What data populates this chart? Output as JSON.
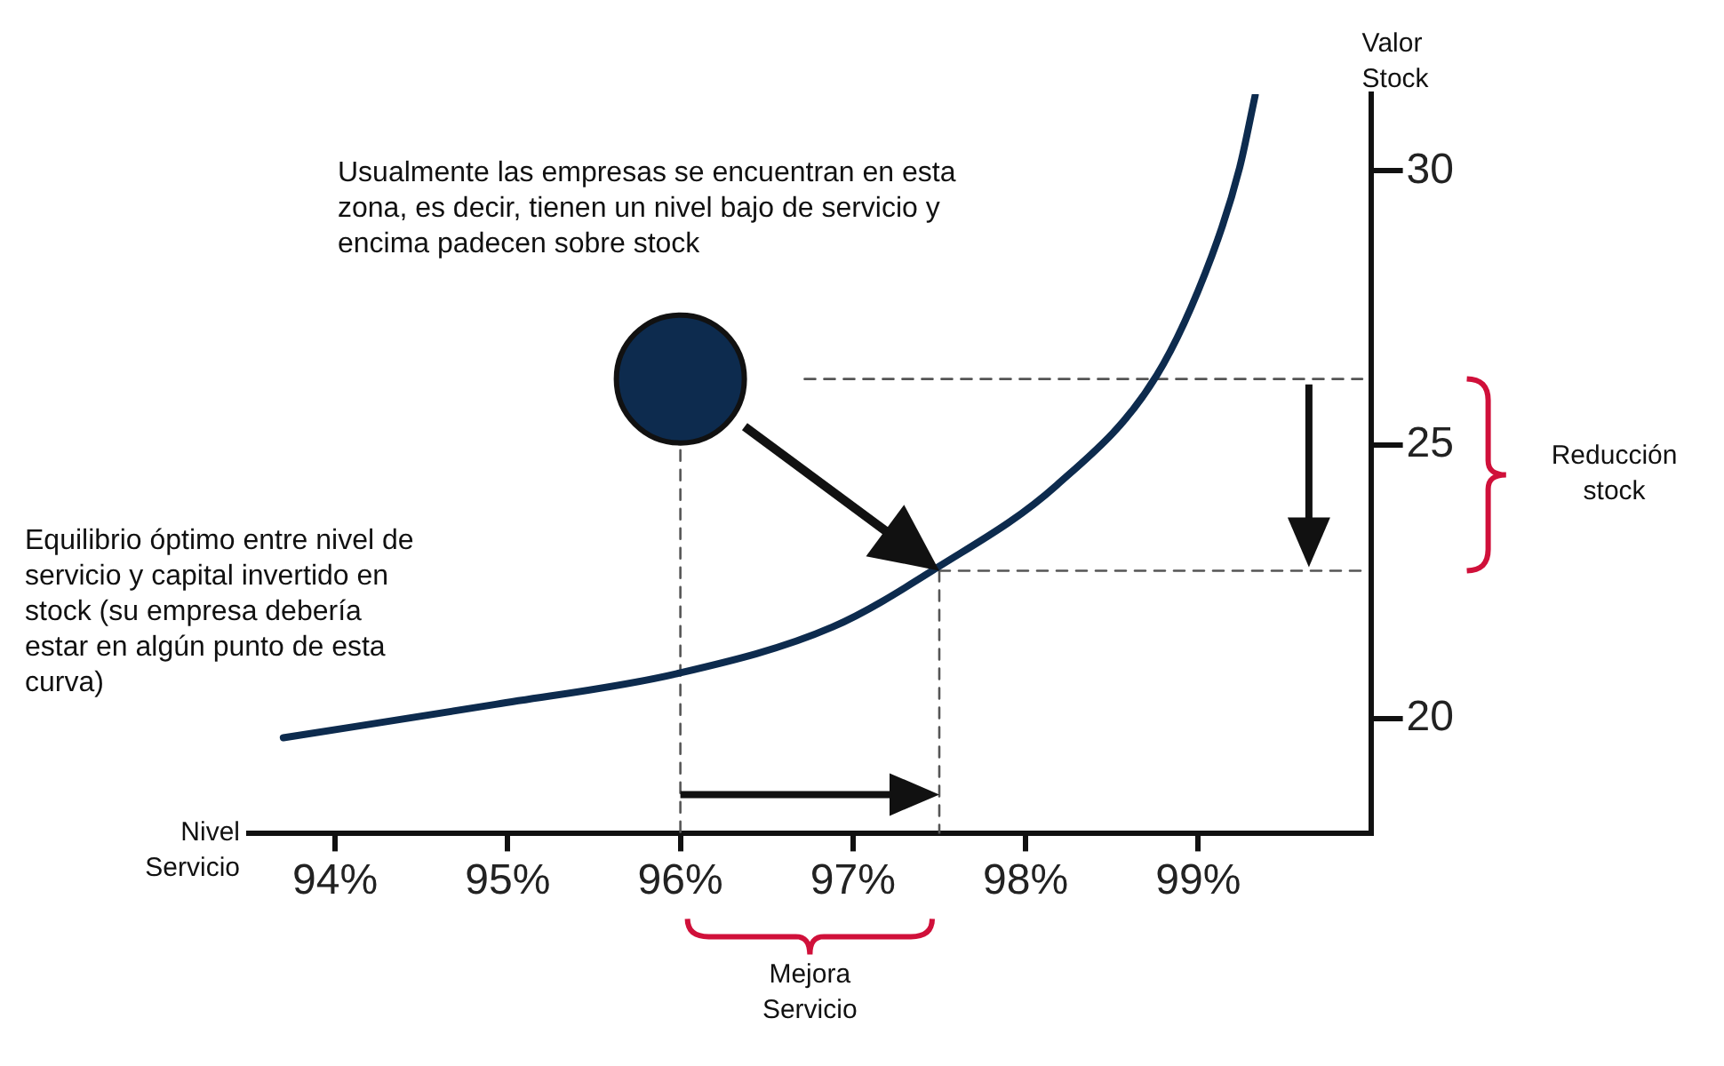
{
  "chart_data": {
    "type": "line",
    "xlabel": "Nivel Servicio",
    "ylabel": "Valor Stock",
    "xlim": [
      93.5,
      100
    ],
    "xticks": [
      {
        "value": 94,
        "label": "94%"
      },
      {
        "value": 95,
        "label": "95%"
      },
      {
        "value": 96,
        "label": "96%"
      },
      {
        "value": 97,
        "label": "97%"
      },
      {
        "value": 98,
        "label": "98%"
      },
      {
        "value": 99,
        "label": "99%"
      }
    ],
    "ylim": [
      17.9,
      31.4
    ],
    "yticks": [
      20,
      25,
      30
    ],
    "grid": false,
    "legend": false,
    "series": [
      {
        "color": "#0d2b4e",
        "marker": "none",
        "x": [
          93.7,
          94.93,
          95.98,
          96.88,
          97.49,
          98.18,
          98.76,
          99.08,
          99.24,
          99.33
        ],
        "values": [
          19.65,
          20.26,
          20.82,
          21.67,
          22.76,
          24.26,
          26.27,
          28.46,
          30.06,
          31.38
        ]
      },
      {
        "type": "scatter",
        "color": "#0d2b4e",
        "marker": "circle",
        "x": [
          96.0
        ],
        "values": [
          26.2
        ]
      },
      {
        "type": "line",
        "color": "#555555",
        "marker": "none",
        "line_style": "dashed",
        "x": [
          96.72,
          99.95
        ],
        "values": [
          26.2,
          26.2
        ]
      },
      {
        "type": "line",
        "color": "#555555",
        "marker": "none",
        "line_style": "dashed",
        "x": [
          97.5,
          99.95
        ],
        "values": [
          22.7,
          22.7
        ]
      },
      {
        "type": "line",
        "color": "#555555",
        "marker": "none",
        "line_style": "dashed",
        "x": [
          96.0,
          96.0
        ],
        "values": [
          24.9,
          17.9
        ]
      },
      {
        "type": "line",
        "color": "#555555",
        "marker": "none",
        "line_style": "dashed",
        "x": [
          97.5,
          97.5
        ],
        "values": [
          22.7,
          17.9
        ]
      }
    ],
    "annotations": [
      "Usualmente las empresas se encuentran en esta zona, es decir, tienen un nivel bajo de servicio y encima padecen sobre stock",
      "Equilibrio óptimo entre nivel de servicio y capital invertido en stock (su empresa debería estar en algún punto de esta curva)",
      "Reducción stock",
      "Mejora Servicio"
    ]
  }
}
